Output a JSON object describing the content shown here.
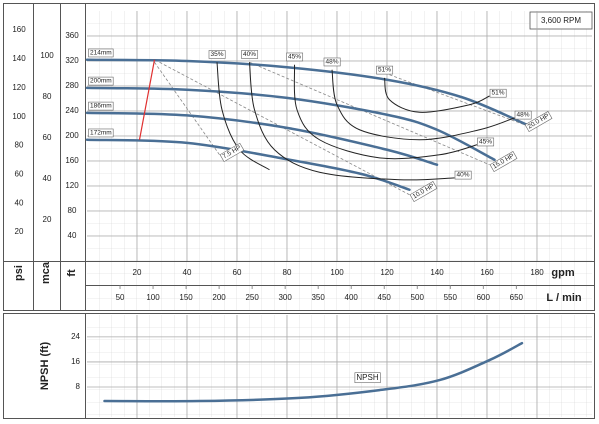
{
  "chart_data": [
    {
      "type": "line",
      "annotation": "3,600 RPM",
      "x_label": "gpm",
      "x2_label": "L / min",
      "y_label": "ft",
      "y2_label": "psi",
      "y3_label": "mca",
      "xlim": [
        0,
        202
      ],
      "xticks": [
        20,
        40,
        60,
        80,
        100,
        120,
        140,
        160,
        180
      ],
      "x2lim": [
        0,
        764.6
      ],
      "x2ticks": [
        50,
        100,
        150,
        200,
        250,
        300,
        350,
        400,
        450,
        500,
        550,
        600,
        650
      ],
      "ylim": [
        0,
        400
      ],
      "yticks": [
        40,
        80,
        120,
        160,
        200,
        240,
        280,
        320,
        360
      ],
      "y2lim": [
        0,
        173.2
      ],
      "y2ticks": [
        20,
        40,
        60,
        80,
        100,
        120,
        140,
        160
      ],
      "y3lim": [
        0,
        121.9
      ],
      "y3ticks": [
        20,
        40,
        60,
        80,
        100
      ],
      "grid": true,
      "color": "#4a6f95",
      "series": [
        {
          "name": "214mm",
          "x": [
            0,
            40,
            80,
            120,
            150,
            176
          ],
          "y": [
            322,
            320,
            310,
            290,
            262,
            218
          ]
        },
        {
          "name": "200mm",
          "x": [
            0,
            40,
            80,
            120,
            140,
            163
          ],
          "y": [
            277,
            274,
            261,
            234,
            210,
            162
          ]
        },
        {
          "name": "186mm",
          "x": [
            0,
            40,
            80,
            120,
            140
          ],
          "y": [
            237,
            233,
            213,
            178,
            154
          ]
        },
        {
          "name": "172mm",
          "x": [
            0,
            40,
            81,
            110,
            129
          ],
          "y": [
            194,
            189,
            162,
            139,
            114
          ]
        }
      ],
      "efficiency": [
        {
          "name": "35%",
          "x": [
            52,
            54,
            61,
            73
          ],
          "y": [
            318,
            242,
            178,
            146
          ]
        },
        {
          "name": "40%",
          "x": [
            65,
            67,
            75,
            93,
            125,
            147
          ],
          "y": [
            318,
            242,
            178,
            142,
            130,
            133
          ]
        },
        {
          "name": "45%",
          "x": [
            83,
            84,
            93,
            117,
            141,
            156
          ],
          "y": [
            314,
            242,
            194,
            165,
            170,
            186
          ]
        },
        {
          "name": "48%",
          "x": [
            98,
            100,
            109,
            133,
            157,
            171
          ],
          "y": [
            306,
            250,
            210,
            194,
            210,
            229
          ]
        },
        {
          "name": "51%",
          "x": [
            119,
            121,
            133,
            153,
            161
          ],
          "y": [
            293,
            258,
            238,
            250,
            264
          ]
        }
      ],
      "power": [
        {
          "name": "7.5 HP",
          "x": [
            27,
            53
          ],
          "y": [
            318,
            170
          ]
        },
        {
          "name": "10.0 HP",
          "x": [
            29,
            129
          ],
          "y": [
            318,
            106
          ]
        },
        {
          "name": "15.0 HP",
          "x": [
            65,
            161
          ],
          "y": [
            318,
            154
          ]
        },
        {
          "name": "20.0 HP",
          "x": [
            121,
            175
          ],
          "y": [
            298,
            218
          ]
        }
      ],
      "limit": {
        "color": "#e03030",
        "x": [
          27,
          21
        ],
        "y": [
          322,
          194
        ]
      }
    },
    {
      "type": "line",
      "y_label": "NPSH (ft)",
      "xlim": [
        0,
        202
      ],
      "ylim": [
        0,
        31
      ],
      "yticks": [
        8,
        16,
        24
      ],
      "grid": true,
      "color": "#4a6f95",
      "series": [
        {
          "name": "NPSH",
          "x": [
            7,
            45,
            85,
            117,
            141,
            161,
            174
          ],
          "y": [
            3.5,
            3.5,
            4.5,
            7.0,
            10.2,
            16.6,
            22
          ]
        }
      ]
    }
  ]
}
